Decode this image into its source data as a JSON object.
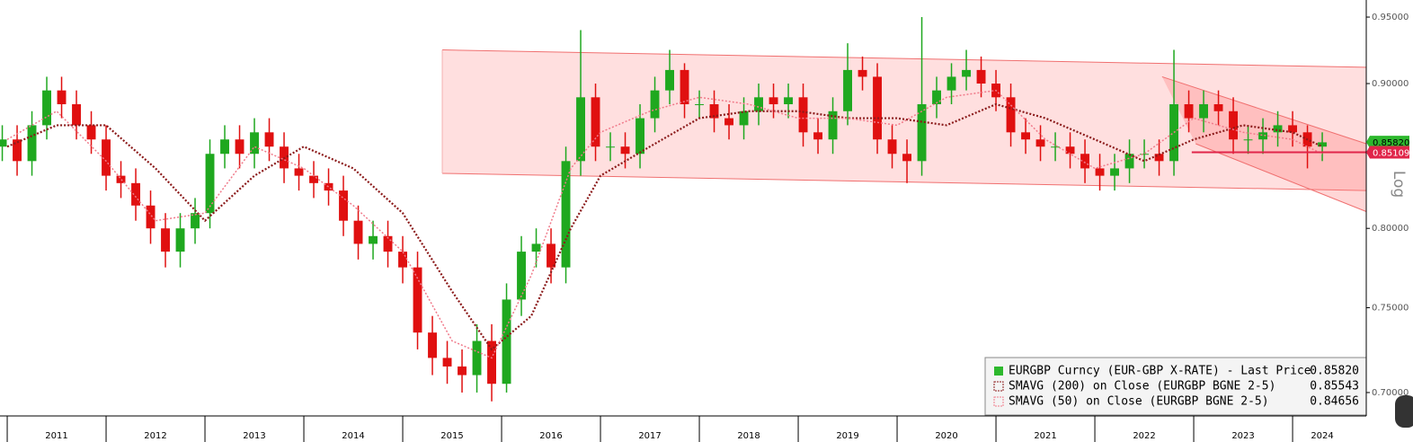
{
  "chart_data": {
    "type": "candlestick",
    "log": true,
    "scale_label": "Log",
    "xlim": [
      2010.927,
      2024.745
    ],
    "ylim": [
      0.6868,
      0.9633
    ],
    "yticks": [
      {
        "value": 0.7,
        "label": "0.70000"
      },
      {
        "value": 0.75,
        "label": "0.75000"
      },
      {
        "value": 0.8,
        "label": "0.80000"
      },
      {
        "value": 0.9,
        "label": "0.90000"
      },
      {
        "value": 0.95,
        "label": "0.95000"
      }
    ],
    "year_bounds": [
      2011,
      2012,
      2013,
      2014,
      2015,
      2016,
      2017,
      2018,
      2019,
      2020,
      2021,
      2022,
      2023,
      2024
    ],
    "xticks": [
      {
        "value": 2011.5,
        "label": "2011"
      },
      {
        "value": 2012.5,
        "label": "2012"
      },
      {
        "value": 2013.5,
        "label": "2013"
      },
      {
        "value": 2014.5,
        "label": "2014"
      },
      {
        "value": 2015.5,
        "label": "2015"
      },
      {
        "value": 2016.5,
        "label": "2016"
      },
      {
        "value": 2017.5,
        "label": "2017"
      },
      {
        "value": 2018.5,
        "label": "2018"
      },
      {
        "value": 2019.5,
        "label": "2019"
      },
      {
        "value": 2020.5,
        "label": "2020"
      },
      {
        "value": 2021.5,
        "label": "2021"
      },
      {
        "value": 2022.5,
        "label": "2022"
      },
      {
        "value": 2023.5,
        "label": "2023"
      },
      {
        "value": 2024.3,
        "label": "2024"
      }
    ],
    "up_color": "#1fa81f",
    "down_color": "#e01010",
    "x": [
      2010.95,
      2011.1,
      2011.25,
      2011.4,
      2011.55,
      2011.7,
      2011.85,
      2012.0,
      2012.15,
      2012.3,
      2012.45,
      2012.6,
      2012.75,
      2012.9,
      2013.05,
      2013.2,
      2013.35,
      2013.5,
      2013.65,
      2013.8,
      2013.95,
      2014.1,
      2014.25,
      2014.4,
      2014.55,
      2014.7,
      2014.85,
      2015.0,
      2015.15,
      2015.3,
      2015.45,
      2015.6,
      2015.75,
      2015.9,
      2016.05,
      2016.2,
      2016.35,
      2016.5,
      2016.65,
      2016.8,
      2016.95,
      2017.1,
      2017.25,
      2017.4,
      2017.55,
      2017.7,
      2017.85,
      2018.0,
      2018.15,
      2018.3,
      2018.45,
      2018.6,
      2018.75,
      2018.9,
      2019.05,
      2019.2,
      2019.35,
      2019.5,
      2019.65,
      2019.8,
      2019.95,
      2020.1,
      2020.25,
      2020.4,
      2020.55,
      2020.7,
      2020.85,
      2021.0,
      2021.15,
      2021.3,
      2021.45,
      2021.6,
      2021.75,
      2021.9,
      2022.05,
      2022.2,
      2022.35,
      2022.5,
      2022.65,
      2022.8,
      2022.95,
      2023.1,
      2023.25,
      2023.4,
      2023.55,
      2023.7,
      2023.85,
      2024.0,
      2024.15,
      2024.3
    ],
    "open": [
      0.855,
      0.86,
      0.845,
      0.87,
      0.895,
      0.885,
      0.87,
      0.86,
      0.835,
      0.83,
      0.815,
      0.8,
      0.785,
      0.8,
      0.81,
      0.85,
      0.86,
      0.85,
      0.865,
      0.855,
      0.84,
      0.835,
      0.83,
      0.825,
      0.805,
      0.79,
      0.795,
      0.785,
      0.775,
      0.735,
      0.72,
      0.715,
      0.71,
      0.73,
      0.705,
      0.755,
      0.785,
      0.79,
      0.775,
      0.845,
      0.89,
      0.855,
      0.855,
      0.85,
      0.875,
      0.895,
      0.91,
      0.885,
      0.885,
      0.875,
      0.87,
      0.88,
      0.89,
      0.885,
      0.89,
      0.865,
      0.86,
      0.88,
      0.91,
      0.905,
      0.86,
      0.85,
      0.845,
      0.885,
      0.895,
      0.905,
      0.91,
      0.9,
      0.89,
      0.865,
      0.86,
      0.855,
      0.855,
      0.85,
      0.84,
      0.835,
      0.84,
      0.85,
      0.85,
      0.845,
      0.885,
      0.875,
      0.885,
      0.88,
      0.86,
      0.86,
      0.865,
      0.87,
      0.865,
      0.855
    ],
    "high": [
      0.87,
      0.87,
      0.88,
      0.905,
      0.905,
      0.895,
      0.88,
      0.87,
      0.845,
      0.84,
      0.825,
      0.81,
      0.81,
      0.82,
      0.86,
      0.87,
      0.87,
      0.875,
      0.875,
      0.865,
      0.85,
      0.845,
      0.84,
      0.835,
      0.815,
      0.805,
      0.805,
      0.795,
      0.785,
      0.745,
      0.73,
      0.725,
      0.74,
      0.74,
      0.765,
      0.795,
      0.8,
      0.8,
      0.855,
      0.94,
      0.9,
      0.865,
      0.865,
      0.885,
      0.905,
      0.925,
      0.915,
      0.895,
      0.895,
      0.885,
      0.89,
      0.9,
      0.9,
      0.9,
      0.9,
      0.875,
      0.89,
      0.93,
      0.92,
      0.915,
      0.87,
      0.86,
      0.95,
      0.905,
      0.915,
      0.925,
      0.92,
      0.91,
      0.9,
      0.875,
      0.87,
      0.865,
      0.865,
      0.86,
      0.85,
      0.85,
      0.86,
      0.86,
      0.86,
      0.925,
      0.895,
      0.895,
      0.895,
      0.89,
      0.87,
      0.875,
      0.88,
      0.88,
      0.87,
      0.865
    ],
    "low": [
      0.845,
      0.835,
      0.835,
      0.86,
      0.875,
      0.86,
      0.85,
      0.825,
      0.82,
      0.805,
      0.79,
      0.775,
      0.775,
      0.79,
      0.8,
      0.84,
      0.84,
      0.84,
      0.845,
      0.83,
      0.825,
      0.82,
      0.815,
      0.795,
      0.78,
      0.78,
      0.775,
      0.765,
      0.725,
      0.71,
      0.705,
      0.7,
      0.7,
      0.695,
      0.7,
      0.745,
      0.775,
      0.765,
      0.765,
      0.835,
      0.845,
      0.845,
      0.84,
      0.84,
      0.865,
      0.885,
      0.875,
      0.875,
      0.865,
      0.86,
      0.86,
      0.87,
      0.875,
      0.875,
      0.855,
      0.85,
      0.85,
      0.87,
      0.895,
      0.85,
      0.84,
      0.83,
      0.835,
      0.875,
      0.885,
      0.895,
      0.89,
      0.88,
      0.855,
      0.85,
      0.845,
      0.845,
      0.84,
      0.83,
      0.825,
      0.825,
      0.83,
      0.84,
      0.835,
      0.835,
      0.865,
      0.865,
      0.87,
      0.85,
      0.85,
      0.85,
      0.855,
      0.855,
      0.84,
      0.845
    ],
    "close": [
      0.86,
      0.845,
      0.87,
      0.895,
      0.885,
      0.87,
      0.86,
      0.835,
      0.83,
      0.815,
      0.8,
      0.785,
      0.8,
      0.81,
      0.85,
      0.86,
      0.85,
      0.865,
      0.855,
      0.84,
      0.835,
      0.83,
      0.825,
      0.805,
      0.79,
      0.795,
      0.785,
      0.775,
      0.735,
      0.72,
      0.715,
      0.71,
      0.73,
      0.705,
      0.755,
      0.785,
      0.79,
      0.775,
      0.845,
      0.89,
      0.855,
      0.855,
      0.85,
      0.875,
      0.895,
      0.91,
      0.885,
      0.885,
      0.875,
      0.87,
      0.88,
      0.89,
      0.885,
      0.89,
      0.865,
      0.86,
      0.88,
      0.91,
      0.905,
      0.86,
      0.85,
      0.845,
      0.885,
      0.895,
      0.905,
      0.91,
      0.9,
      0.89,
      0.865,
      0.86,
      0.855,
      0.855,
      0.85,
      0.84,
      0.835,
      0.84,
      0.85,
      0.85,
      0.845,
      0.885,
      0.875,
      0.885,
      0.88,
      0.86,
      0.86,
      0.865,
      0.87,
      0.865,
      0.855,
      0.858
    ],
    "last": {
      "name": "EURGBP Curncy (EUR-GBP X-RATE) - Last Price",
      "value": 0.8582,
      "label": "0.85820",
      "color": "#2db82d"
    },
    "series": [
      {
        "name": "SMAVG (200)  on Close (EURGBP BGNE 2-5)",
        "color": "#8b1a1a",
        "last": {
          "value": 0.85543,
          "label": "0.85543"
        },
        "x": [
          2011.0,
          2011.5,
          2012.0,
          2012.5,
          2013.0,
          2013.5,
          2014.0,
          2014.5,
          2015.0,
          2015.5,
          2015.9,
          2016.3,
          2016.7,
          2017.0,
          2017.5,
          2018.0,
          2018.5,
          2019.0,
          2019.5,
          2020.0,
          2020.5,
          2021.0,
          2021.5,
          2022.0,
          2022.5,
          2023.0,
          2023.5,
          2024.0,
          2024.3
        ],
        "values": [
          0.855,
          0.87,
          0.87,
          0.84,
          0.805,
          0.835,
          0.855,
          0.84,
          0.81,
          0.76,
          0.725,
          0.745,
          0.8,
          0.835,
          0.855,
          0.875,
          0.88,
          0.88,
          0.875,
          0.875,
          0.87,
          0.885,
          0.875,
          0.86,
          0.845,
          0.86,
          0.87,
          0.865,
          0.855
        ]
      },
      {
        "name": "SMAVG (50)  on Close (EURGBP BGNE 2-5)",
        "color": "#f07a8a",
        "last": {
          "value": 0.84656,
          "label": "0.84656"
        },
        "x": [
          2011.0,
          2011.5,
          2012.0,
          2012.5,
          2013.0,
          2013.5,
          2014.0,
          2014.5,
          2015.0,
          2015.5,
          2015.9,
          2016.3,
          2016.7,
          2017.0,
          2017.5,
          2018.0,
          2018.5,
          2019.0,
          2019.5,
          2020.0,
          2020.5,
          2021.0,
          2021.5,
          2022.0,
          2022.5,
          2023.0,
          2023.5,
          2024.0,
          2024.3
        ],
        "values": [
          0.86,
          0.88,
          0.845,
          0.805,
          0.81,
          0.855,
          0.84,
          0.815,
          0.785,
          0.73,
          0.72,
          0.77,
          0.84,
          0.865,
          0.88,
          0.89,
          0.885,
          0.875,
          0.875,
          0.87,
          0.89,
          0.895,
          0.86,
          0.84,
          0.85,
          0.875,
          0.865,
          0.86,
          0.85
        ]
      }
    ],
    "level": {
      "value": 0.85109,
      "label": "0.85109",
      "x": [
        2022.98,
        2024.745
      ],
      "color": "#e0254a"
    },
    "channel": {
      "upper": {
        "x": [
          2015.4,
          2024.745
        ],
        "values": [
          0.925,
          0.912
        ]
      },
      "lower": {
        "x": [
          2015.4,
          2024.745
        ],
        "values": [
          0.8366,
          0.825
        ]
      }
    },
    "wedge": {
      "upper": {
        "x": [
          2022.68,
          2024.745
        ],
        "values": [
          0.905,
          0.857
        ]
      },
      "lower": {
        "x": [
          2023.02,
          2024.745
        ],
        "values": [
          0.857,
          0.811
        ]
      }
    }
  }
}
